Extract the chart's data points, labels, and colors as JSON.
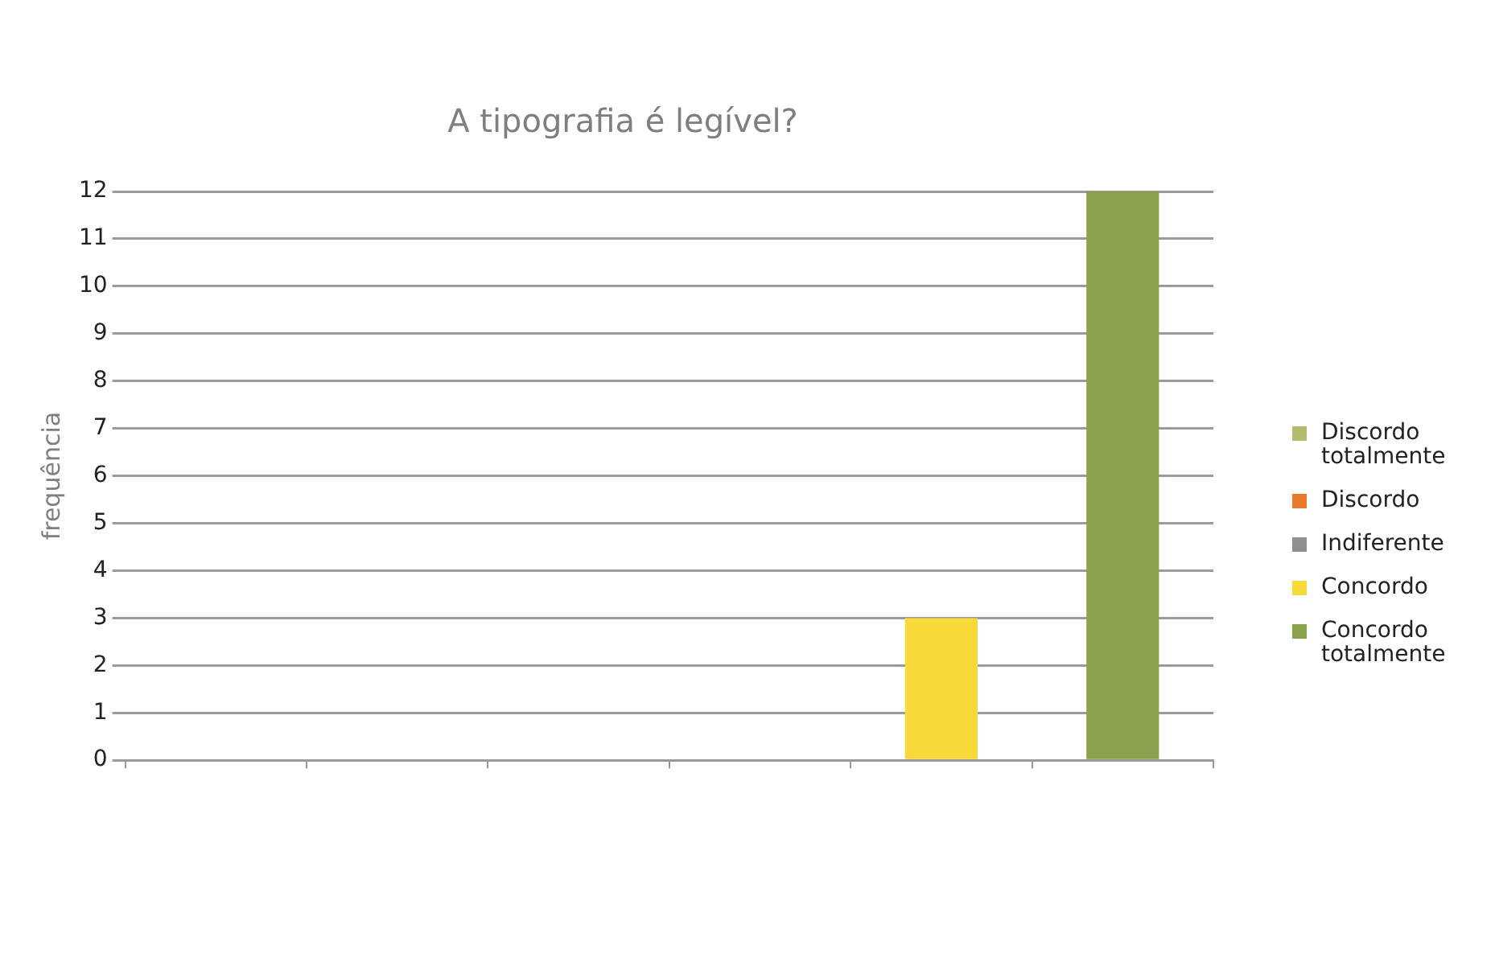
{
  "chart_data": {
    "type": "bar",
    "title": "A tipografia é legível?",
    "ylabel": "frequência",
    "categories": [
      null,
      null,
      null,
      null,
      null,
      null
    ],
    "series": [
      {
        "name": "Discordo totalmente",
        "color": "#b3bb6e",
        "values": [
          null,
          null,
          null,
          null,
          null,
          null
        ]
      },
      {
        "name": "Discordo",
        "color": "#e8792a",
        "values": [
          null,
          null,
          null,
          null,
          null,
          null
        ]
      },
      {
        "name": "Indiferente",
        "color": "#8f8f8f",
        "values": [
          null,
          null,
          null,
          null,
          null,
          null
        ]
      },
      {
        "name": "Concordo",
        "color": "#f7d93a",
        "values": [
          null,
          null,
          null,
          null,
          3,
          null
        ]
      },
      {
        "name": "Concordo totalmente",
        "color": "#88a14a",
        "values": [
          null,
          null,
          null,
          null,
          null,
          12
        ]
      }
    ],
    "ylim": [
      0,
      12
    ],
    "yticks": [
      0,
      1,
      2,
      3,
      4,
      5,
      6,
      7,
      8,
      9,
      10,
      11,
      12
    ],
    "grid": "y",
    "legend": "right"
  }
}
